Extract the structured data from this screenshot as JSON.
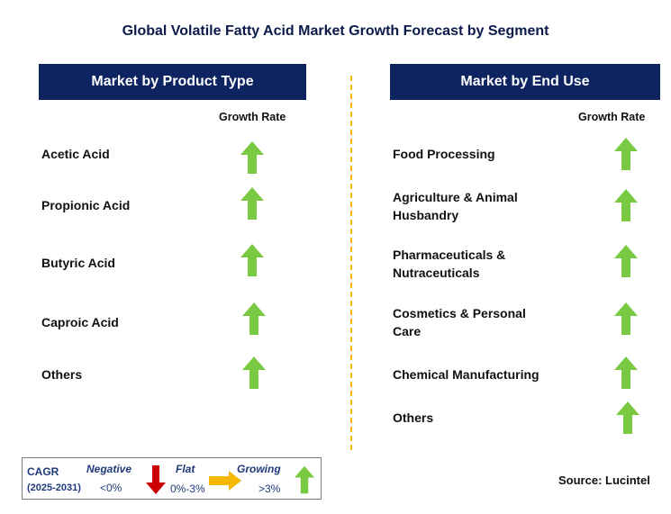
{
  "title": "Global Volatile Fatty Acid Market Growth Forecast by Segment",
  "left_panel": {
    "header": "Market by Product Type",
    "growth_header": "Growth Rate",
    "items": [
      {
        "label": "Acetic Acid",
        "trend": "growing"
      },
      {
        "label": "Propionic Acid",
        "trend": "growing"
      },
      {
        "label": "Butyric Acid",
        "trend": "growing"
      },
      {
        "label": "Caproic Acid",
        "trend": "growing"
      },
      {
        "label": "Others",
        "trend": "growing"
      }
    ]
  },
  "right_panel": {
    "header": "Market by End Use",
    "growth_header": "Growth Rate",
    "items": [
      {
        "label": "Food Processing",
        "trend": "growing"
      },
      {
        "label": "Agriculture & Animal Husbandry",
        "trend": "growing"
      },
      {
        "label": "Pharmaceuticals & Nutraceuticals",
        "trend": "growing"
      },
      {
        "label": "Cosmetics & Personal Care",
        "trend": "growing"
      },
      {
        "label": "Chemical Manufacturing",
        "trend": "growing"
      },
      {
        "label": "Others",
        "trend": "growing"
      }
    ]
  },
  "legend": {
    "cagr": "CAGR",
    "period": "(2025-2031)",
    "negative": {
      "label": "Negative",
      "range": "<0%",
      "icon": "red-down-arrow-icon"
    },
    "flat": {
      "label": "Flat",
      "range": "0%-3%",
      "icon": "orange-right-arrow-icon"
    },
    "growing": {
      "label": "Growing",
      "range": ">3%",
      "icon": "green-up-arrow-icon"
    }
  },
  "source": "Source: Lucintel",
  "colors": {
    "header_bg": "#0d2461",
    "growing": "#7ac943",
    "negative": "#cc0000",
    "flat": "#f5b800",
    "divider": "#f5b800",
    "legend_text": "#1f3a7a"
  }
}
